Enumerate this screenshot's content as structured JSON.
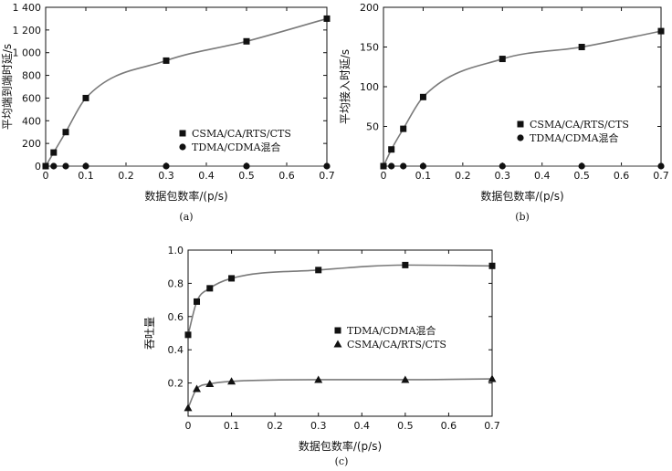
{
  "chart_data": [
    {
      "id": "a",
      "type": "line",
      "panel_label": "(a)",
      "xlabel": "数据包数率/(p/s)",
      "ylabel": "平均端到端时延/s",
      "xlim": [
        0,
        0.7
      ],
      "ylim": [
        0,
        1400
      ],
      "xticks": [
        0,
        0.1,
        0.2,
        0.3,
        0.4,
        0.5,
        0.6,
        0.7
      ],
      "yticks": [
        0,
        200,
        400,
        600,
        800,
        1000,
        1200,
        1400
      ],
      "xtick_labels": [
        "0",
        "0.1",
        "0.2",
        "0.3",
        "0.4",
        "0.5",
        "0.6",
        "0.7"
      ],
      "ytick_labels": [
        "0",
        "200",
        "400",
        "600",
        "800",
        "1 000",
        "1 200",
        "1 400"
      ],
      "legend_position": "lower-right",
      "series": [
        {
          "name": "CSMA/CA/RTS/CTS",
          "marker": "square",
          "x": [
            0,
            0.02,
            0.05,
            0.1,
            0.3,
            0.5,
            0.7
          ],
          "y": [
            0,
            120,
            300,
            600,
            930,
            1100,
            1300
          ]
        },
        {
          "name": "TDMA/CDMA混合",
          "marker": "circle",
          "x": [
            0,
            0.02,
            0.05,
            0.1,
            0.3,
            0.5,
            0.7
          ],
          "y": [
            0,
            0,
            0,
            0,
            0,
            0,
            0
          ]
        }
      ]
    },
    {
      "id": "b",
      "type": "line",
      "panel_label": "(b)",
      "xlabel": "数据包数率/(p/s)",
      "ylabel": "平均接入时延/s",
      "xlim": [
        0,
        0.7
      ],
      "ylim": [
        0,
        200
      ],
      "xticks": [
        0,
        0.1,
        0.2,
        0.3,
        0.4,
        0.5,
        0.6,
        0.7
      ],
      "yticks": [
        0,
        50,
        100,
        150,
        200
      ],
      "xtick_labels": [
        "0",
        "0.1",
        "0.2",
        "0.3",
        "0.4",
        "0.5",
        "0.6",
        "0.7"
      ],
      "ytick_labels": [
        "",
        "50",
        "100",
        "150",
        "200"
      ],
      "legend_position": "lower-right",
      "series": [
        {
          "name": "CSMA/CA/RTS/CTS",
          "marker": "square",
          "x": [
            0,
            0.02,
            0.05,
            0.1,
            0.3,
            0.5,
            0.7
          ],
          "y": [
            0,
            21,
            47,
            87,
            135,
            150,
            170
          ]
        },
        {
          "name": "TDMA/CDMA混合",
          "marker": "circle",
          "x": [
            0,
            0.02,
            0.05,
            0.1,
            0.3,
            0.5,
            0.7
          ],
          "y": [
            0,
            0,
            0,
            0,
            0,
            0,
            0
          ]
        }
      ]
    },
    {
      "id": "c",
      "type": "line",
      "panel_label": "(c)",
      "xlabel": "数据包数率/(p/s)",
      "ylabel": "吞吐量",
      "xlim": [
        0,
        0.7
      ],
      "ylim": [
        0,
        1.0
      ],
      "xticks": [
        0,
        0.1,
        0.2,
        0.3,
        0.4,
        0.5,
        0.6,
        0.7
      ],
      "yticks": [
        0.2,
        0.4,
        0.6,
        0.8,
        1.0
      ],
      "xtick_labels": [
        "0",
        "0.1",
        "0.2",
        "0.3",
        "0.4",
        "0.5",
        "0.6",
        "0.7"
      ],
      "ytick_labels": [
        "0.2",
        "0.4",
        "0.6",
        "0.8",
        "1.0"
      ],
      "legend_position": "center-right",
      "series": [
        {
          "name": "TDMA/CDMA混合",
          "marker": "square",
          "x": [
            0,
            0.02,
            0.05,
            0.1,
            0.3,
            0.5,
            0.7
          ],
          "y": [
            0.49,
            0.69,
            0.77,
            0.83,
            0.88,
            0.91,
            0.905
          ]
        },
        {
          "name": "CSMA/CA/RTS/CTS",
          "marker": "triangle",
          "x": [
            0,
            0.02,
            0.05,
            0.1,
            0.3,
            0.5,
            0.7
          ],
          "y": [
            0.05,
            0.165,
            0.195,
            0.21,
            0.22,
            0.22,
            0.225
          ]
        }
      ]
    }
  ],
  "colors": {
    "line": "#7a7a7a",
    "marker": "#111111",
    "axis": "#111111"
  }
}
